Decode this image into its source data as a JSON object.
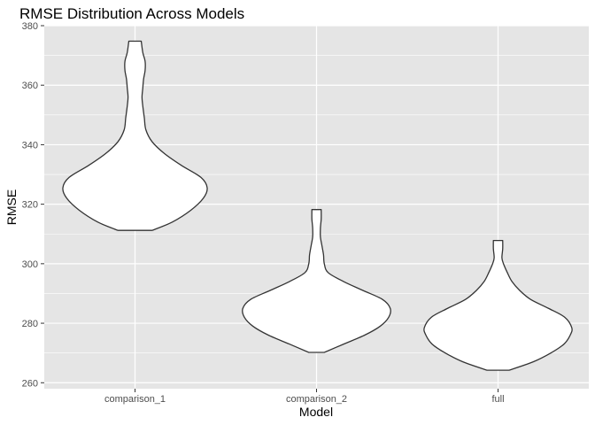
{
  "chart_data": {
    "type": "violin",
    "title": "RMSE Distribution Across Models",
    "xlabel": "Model",
    "ylabel": "RMSE",
    "categories": [
      "comparison_1",
      "comparison_2",
      "full"
    ],
    "ylim": [
      258,
      380
    ],
    "yticks": [
      260,
      280,
      300,
      320,
      340,
      360,
      380
    ],
    "grid": true,
    "colors": {
      "panel_background": "#e5e5e5",
      "grid_line": "#ffffff",
      "violin_fill": "#ffffff",
      "violin_outline": "#333333",
      "tick_text": "#4d4d4d"
    },
    "series": [
      {
        "category": "comparison_1",
        "min": 311.2,
        "max": 374.8,
        "density_profile": [
          [
            311.2,
            0.22
          ],
          [
            314,
            0.48
          ],
          [
            318,
            0.72
          ],
          [
            322,
            0.88
          ],
          [
            325.5,
            0.93
          ],
          [
            329,
            0.85
          ],
          [
            333,
            0.6
          ],
          [
            337,
            0.38
          ],
          [
            341,
            0.22
          ],
          [
            345,
            0.14
          ],
          [
            349,
            0.12
          ],
          [
            353,
            0.1
          ],
          [
            356,
            0.09
          ],
          [
            359,
            0.1
          ],
          [
            362,
            0.11
          ],
          [
            365,
            0.13
          ],
          [
            368,
            0.13
          ],
          [
            371,
            0.1
          ],
          [
            374.8,
            0.08
          ]
        ]
      },
      {
        "category": "comparison_2",
        "min": 270.2,
        "max": 318.2,
        "density_profile": [
          [
            270.2,
            0.1
          ],
          [
            273,
            0.35
          ],
          [
            276,
            0.62
          ],
          [
            279,
            0.82
          ],
          [
            282,
            0.93
          ],
          [
            285,
            0.95
          ],
          [
            288,
            0.85
          ],
          [
            291,
            0.6
          ],
          [
            294,
            0.35
          ],
          [
            297,
            0.15
          ],
          [
            300,
            0.1
          ],
          [
            303,
            0.09
          ],
          [
            306,
            0.07
          ],
          [
            309,
            0.05
          ],
          [
            312,
            0.05
          ],
          [
            315,
            0.06
          ],
          [
            318.2,
            0.06
          ]
        ]
      },
      {
        "category": "full",
        "min": 264.2,
        "max": 307.8,
        "density_profile": [
          [
            264.2,
            0.14
          ],
          [
            267,
            0.45
          ],
          [
            270,
            0.68
          ],
          [
            273,
            0.85
          ],
          [
            276,
            0.93
          ],
          [
            278.5,
            0.95
          ],
          [
            282,
            0.86
          ],
          [
            285,
            0.65
          ],
          [
            288,
            0.42
          ],
          [
            291,
            0.28
          ],
          [
            294,
            0.18
          ],
          [
            297,
            0.12
          ],
          [
            300,
            0.07
          ],
          [
            302,
            0.05
          ],
          [
            305,
            0.06
          ],
          [
            307.8,
            0.06
          ]
        ]
      }
    ]
  }
}
